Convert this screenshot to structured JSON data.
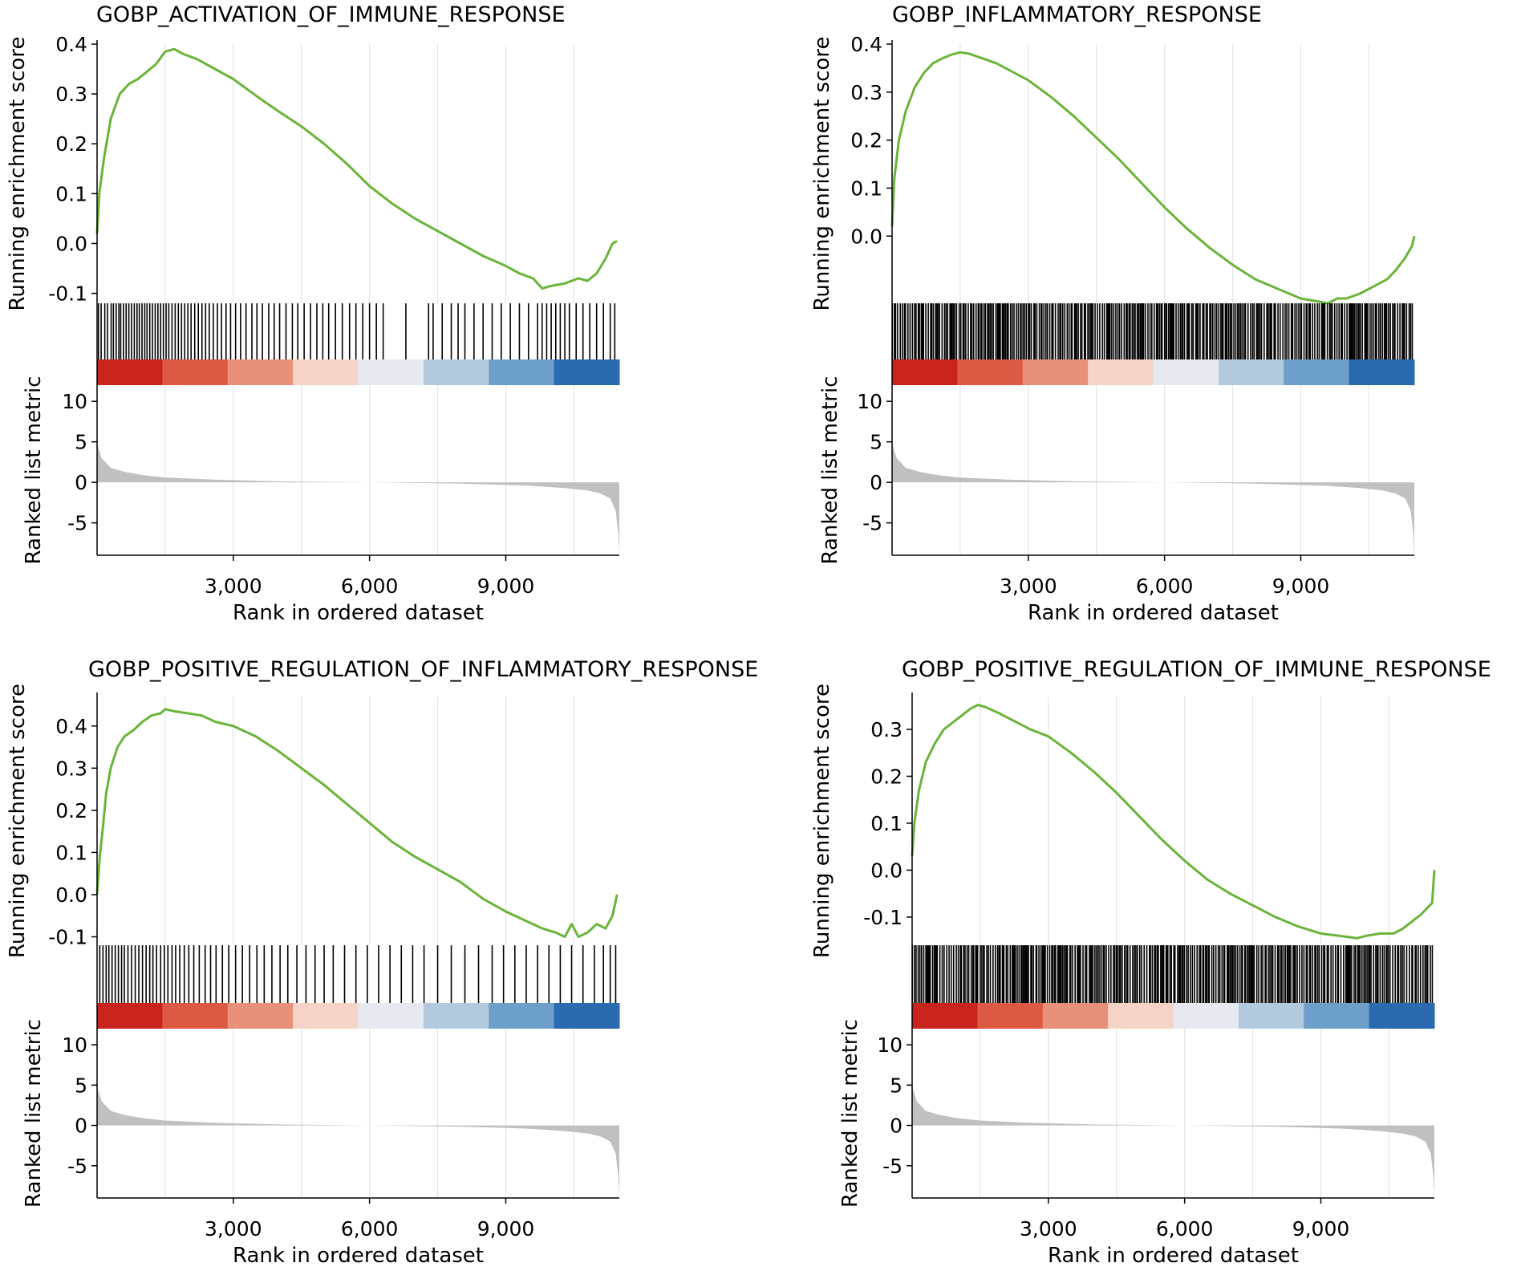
{
  "figure": {
    "xlabel": "Rank in ordered dataset",
    "es_ylabel": "Running enrichment score",
    "metric_ylabel": "Ranked list metric",
    "line_color": "#6ab43a",
    "hit_color": "#000000",
    "metric_fill_color": "#c0c0c0",
    "gridline_color": "#e5e5e5",
    "heat_colors": [
      "#c8231c",
      "#dc5a44",
      "#e9907a",
      "#f5d3c6",
      "#e6e9f0",
      "#b3cadd",
      "#6d9fcb",
      "#2a6ab0"
    ]
  },
  "chart_data": [
    {
      "type": "line",
      "title": "GOBP_ACTIVATION_OF_IMMUNE_RESPONSE",
      "xlabel": "Rank in ordered dataset",
      "ylabel": "Running enrichment score",
      "xlim": [
        0,
        11500
      ],
      "ylim": [
        -0.12,
        0.4
      ],
      "yticks": [
        -0.1,
        0.0,
        0.1,
        0.2,
        0.3,
        0.4
      ],
      "ytick_labels": [
        "-0.1",
        "0.0",
        "0.1",
        "0.2",
        "0.3",
        "0.4"
      ],
      "xticks": [
        3000,
        6000,
        9000
      ],
      "xtick_labels": [
        "3,000",
        "6,000",
        "9,000"
      ],
      "vgrid": [
        1500,
        3000,
        4500,
        6000,
        7500,
        9000,
        10500
      ],
      "x": [
        0,
        50,
        150,
        300,
        500,
        700,
        900,
        1100,
        1300,
        1500,
        1700,
        1900,
        2200,
        2500,
        2800,
        3000,
        3300,
        3600,
        4000,
        4500,
        5000,
        5500,
        6000,
        6500,
        7000,
        7500,
        8000,
        8500,
        9000,
        9300,
        9600,
        9800,
        10000,
        10300,
        10600,
        10800,
        11000,
        11100,
        11200,
        11350,
        11450
      ],
      "y": [
        0.02,
        0.1,
        0.17,
        0.25,
        0.3,
        0.32,
        0.33,
        0.345,
        0.36,
        0.385,
        0.39,
        0.38,
        0.37,
        0.355,
        0.34,
        0.33,
        0.31,
        0.29,
        0.265,
        0.235,
        0.2,
        0.16,
        0.115,
        0.08,
        0.05,
        0.025,
        0.0,
        -0.025,
        -0.045,
        -0.06,
        -0.07,
        -0.09,
        -0.085,
        -0.08,
        -0.07,
        -0.075,
        -0.06,
        -0.045,
        -0.03,
        0.0,
        0.005
      ],
      "hits": [
        30,
        90,
        170,
        230,
        310,
        360,
        420,
        480,
        520,
        580,
        640,
        700,
        760,
        820,
        880,
        930,
        990,
        1050,
        1100,
        1160,
        1220,
        1280,
        1340,
        1400,
        1460,
        1520,
        1580,
        1650,
        1720,
        1790,
        1860,
        1930,
        2000,
        2070,
        2150,
        2230,
        2310,
        2390,
        2470,
        2560,
        2650,
        2740,
        2840,
        2940,
        3050,
        3160,
        3280,
        3410,
        3520,
        3640,
        3780,
        3900,
        4020,
        4160,
        4300,
        4420,
        4560,
        4700,
        4840,
        4970,
        5100,
        5250,
        5400,
        5560,
        5700,
        5850,
        6000,
        6150,
        6300,
        6800,
        7300,
        7400,
        7600,
        7800,
        7950,
        8100,
        8300,
        8500,
        8700,
        8900,
        9100,
        9300,
        9500,
        9700,
        9800,
        9900,
        10000,
        10100,
        10200,
        10300,
        10400,
        10550,
        10700,
        10850,
        11000,
        11150,
        11300,
        11400
      ],
      "metric_ylim": [
        -9,
        12
      ],
      "metric_yticks": [
        10,
        5,
        0,
        -5
      ],
      "metric_ytick_labels": [
        "10",
        "5",
        "0",
        "-5"
      ],
      "metric_ylabel": "Ranked list metric",
      "metric_x": [
        0,
        20,
        100,
        300,
        600,
        1000,
        1500,
        2500,
        4000,
        6000,
        8000,
        9500,
        10300,
        10800,
        11100,
        11300,
        11420,
        11480,
        11500
      ],
      "metric_y": [
        6,
        4.5,
        3,
        1.8,
        1.3,
        0.9,
        0.6,
        0.35,
        0.12,
        0,
        -0.15,
        -0.4,
        -0.7,
        -1.0,
        -1.4,
        -2.0,
        -3.5,
        -6.5,
        -9
      ]
    },
    {
      "type": "line",
      "title": "GOBP_INFLAMMATORY_RESPONSE",
      "xlabel": "Rank in ordered dataset",
      "ylabel": "Running enrichment score",
      "xlim": [
        0,
        11500
      ],
      "ylim": [
        -0.14,
        0.4
      ],
      "yticks": [
        0.0,
        0.1,
        0.2,
        0.3,
        0.4
      ],
      "ytick_labels": [
        "0.0",
        "0.1",
        "0.2",
        "0.3",
        "0.4"
      ],
      "xticks": [
        3000,
        6000,
        9000
      ],
      "xtick_labels": [
        "3,000",
        "6,000",
        "9,000"
      ],
      "vgrid": [
        1500,
        3000,
        4500,
        6000,
        7500,
        9000,
        10500
      ],
      "x": [
        0,
        50,
        150,
        300,
        500,
        700,
        900,
        1100,
        1300,
        1500,
        1700,
        2000,
        2300,
        2700,
        3000,
        3500,
        4000,
        4500,
        5000,
        5500,
        6000,
        6500,
        7000,
        7500,
        8000,
        8500,
        9000,
        9300,
        9600,
        9800,
        10000,
        10300,
        10600,
        10900,
        11100,
        11300,
        11450,
        11500
      ],
      "y": [
        0.02,
        0.12,
        0.2,
        0.26,
        0.31,
        0.34,
        0.36,
        0.37,
        0.378,
        0.383,
        0.38,
        0.37,
        0.36,
        0.34,
        0.325,
        0.29,
        0.25,
        0.205,
        0.16,
        0.11,
        0.06,
        0.015,
        -0.025,
        -0.06,
        -0.09,
        -0.11,
        -0.13,
        -0.135,
        -0.14,
        -0.13,
        -0.13,
        -0.12,
        -0.105,
        -0.09,
        -0.07,
        -0.045,
        -0.02,
        0.0
      ],
      "hits": [],
      "hit_density": "dense",
      "metric_ylim": [
        -9,
        12
      ],
      "metric_yticks": [
        10,
        5,
        0,
        -5
      ],
      "metric_ytick_labels": [
        "10",
        "5",
        "0",
        "-5"
      ],
      "metric_ylabel": "Ranked list metric",
      "metric_x": [
        0,
        20,
        100,
        300,
        600,
        1000,
        1500,
        2500,
        4000,
        6000,
        8000,
        9500,
        10300,
        10800,
        11100,
        11300,
        11420,
        11480,
        11500
      ],
      "metric_y": [
        6,
        4.5,
        3,
        1.8,
        1.3,
        0.9,
        0.6,
        0.35,
        0.12,
        0,
        -0.15,
        -0.4,
        -0.7,
        -1.0,
        -1.4,
        -2.0,
        -3.5,
        -6.5,
        -9
      ]
    },
    {
      "type": "line",
      "title": "GOBP_POSITIVE_REGULATION_OF_INFLAMMATORY_RESPONSE",
      "xlabel": "Rank in ordered dataset",
      "ylabel": "Running enrichment score",
      "xlim": [
        0,
        11500
      ],
      "ylim": [
        -0.12,
        0.47
      ],
      "yticks": [
        -0.1,
        0.0,
        0.1,
        0.2,
        0.3,
        0.4
      ],
      "ytick_labels": [
        "-0.1",
        "0.0",
        "0.1",
        "0.2",
        "0.3",
        "0.4"
      ],
      "xticks": [
        3000,
        6000,
        9000
      ],
      "xtick_labels": [
        "3,000",
        "6,000",
        "9,000"
      ],
      "vgrid": [
        1500,
        3000,
        4500,
        6000,
        7500,
        9000,
        10500
      ],
      "x": [
        0,
        60,
        120,
        200,
        300,
        450,
        600,
        800,
        1000,
        1200,
        1400,
        1500,
        1700,
        2000,
        2300,
        2600,
        3000,
        3500,
        4000,
        4500,
        5000,
        5500,
        6000,
        6500,
        7000,
        7500,
        8000,
        8500,
        9000,
        9400,
        9800,
        10100,
        10300,
        10450,
        10600,
        10800,
        11000,
        11200,
        11350,
        11450
      ],
      "y": [
        0.0,
        0.09,
        0.15,
        0.24,
        0.3,
        0.35,
        0.375,
        0.39,
        0.41,
        0.425,
        0.43,
        0.44,
        0.435,
        0.43,
        0.425,
        0.41,
        0.4,
        0.375,
        0.34,
        0.3,
        0.26,
        0.215,
        0.17,
        0.125,
        0.09,
        0.06,
        0.03,
        -0.01,
        -0.04,
        -0.06,
        -0.08,
        -0.09,
        -0.1,
        -0.07,
        -0.1,
        -0.09,
        -0.07,
        -0.08,
        -0.05,
        0.0
      ],
      "hits": [
        60,
        130,
        200,
        260,
        330,
        400,
        470,
        540,
        600,
        680,
        760,
        840,
        920,
        1000,
        1080,
        1160,
        1230,
        1310,
        1400,
        1480,
        1560,
        1650,
        1730,
        1820,
        1920,
        2020,
        2130,
        2250,
        2380,
        2500,
        2620,
        2760,
        2900,
        3050,
        3200,
        3360,
        3520,
        3680,
        3850,
        4030,
        4200,
        4400,
        4600,
        4800,
        5000,
        5200,
        5450,
        5700,
        5950,
        6200,
        6450,
        6700,
        6950,
        7200,
        7500,
        7800,
        8100,
        8400,
        8700,
        8950,
        9200,
        9450,
        9700,
        9950,
        10200,
        10450,
        10700,
        10950,
        11150,
        11300,
        11420
      ],
      "metric_ylim": [
        -9,
        12
      ],
      "metric_yticks": [
        10,
        5,
        0,
        -5
      ],
      "metric_ytick_labels": [
        "10",
        "5",
        "0",
        "-5"
      ],
      "metric_ylabel": "Ranked list metric",
      "metric_x": [
        0,
        20,
        100,
        300,
        600,
        1000,
        1500,
        2500,
        4000,
        6000,
        8000,
        9500,
        10300,
        10800,
        11100,
        11300,
        11420,
        11480,
        11500
      ],
      "metric_y": [
        6,
        4.5,
        3,
        1.8,
        1.3,
        0.9,
        0.6,
        0.35,
        0.12,
        0,
        -0.15,
        -0.4,
        -0.7,
        -1.0,
        -1.4,
        -2.0,
        -3.5,
        -6.5,
        -9
      ]
    },
    {
      "type": "line",
      "title": "GOBP_POSITIVE_REGULATION_OF_IMMUNE_RESPONSE",
      "xlabel": "Rank in ordered dataset",
      "ylabel": "Running enrichment score",
      "xlim": [
        0,
        11500
      ],
      "ylim": [
        -0.16,
        0.37
      ],
      "yticks": [
        -0.1,
        0.0,
        0.1,
        0.2,
        0.3
      ],
      "ytick_labels": [
        "-0.1",
        "0.0",
        "0.1",
        "0.2",
        "0.3"
      ],
      "xticks": [
        3000,
        6000,
        9000
      ],
      "xtick_labels": [
        "3,000",
        "6,000",
        "9,000"
      ],
      "vgrid": [
        1500,
        3000,
        4500,
        6000,
        7500,
        9000,
        10500
      ],
      "x": [
        0,
        50,
        150,
        300,
        500,
        700,
        900,
        1100,
        1300,
        1450,
        1600,
        1900,
        2200,
        2600,
        3000,
        3500,
        4000,
        4500,
        5000,
        5500,
        6000,
        6500,
        7000,
        7500,
        8000,
        8500,
        9000,
        9400,
        9800,
        10000,
        10300,
        10600,
        10800,
        11000,
        11200,
        11350,
        11450,
        11500
      ],
      "y": [
        0.03,
        0.1,
        0.17,
        0.23,
        0.27,
        0.3,
        0.315,
        0.33,
        0.345,
        0.352,
        0.348,
        0.335,
        0.32,
        0.3,
        0.285,
        0.25,
        0.21,
        0.165,
        0.115,
        0.065,
        0.02,
        -0.02,
        -0.05,
        -0.075,
        -0.1,
        -0.12,
        -0.135,
        -0.14,
        -0.145,
        -0.14,
        -0.135,
        -0.135,
        -0.125,
        -0.11,
        -0.095,
        -0.08,
        -0.07,
        0.0
      ],
      "hits": [],
      "hit_density": "dense",
      "metric_ylim": [
        -9,
        12
      ],
      "metric_yticks": [
        10,
        5,
        0,
        -5
      ],
      "metric_ytick_labels": [
        "10",
        "5",
        "0",
        "-5"
      ],
      "metric_ylabel": "Ranked list metric",
      "metric_x": [
        0,
        20,
        100,
        300,
        600,
        1000,
        1500,
        2500,
        4000,
        6000,
        8000,
        9500,
        10300,
        10800,
        11100,
        11300,
        11420,
        11480,
        11500
      ],
      "metric_y": [
        6,
        4.5,
        3,
        1.8,
        1.3,
        0.9,
        0.6,
        0.35,
        0.12,
        0,
        -0.15,
        -0.4,
        -0.7,
        -1.0,
        -1.4,
        -2.0,
        -3.5,
        -6.5,
        -9
      ]
    }
  ]
}
